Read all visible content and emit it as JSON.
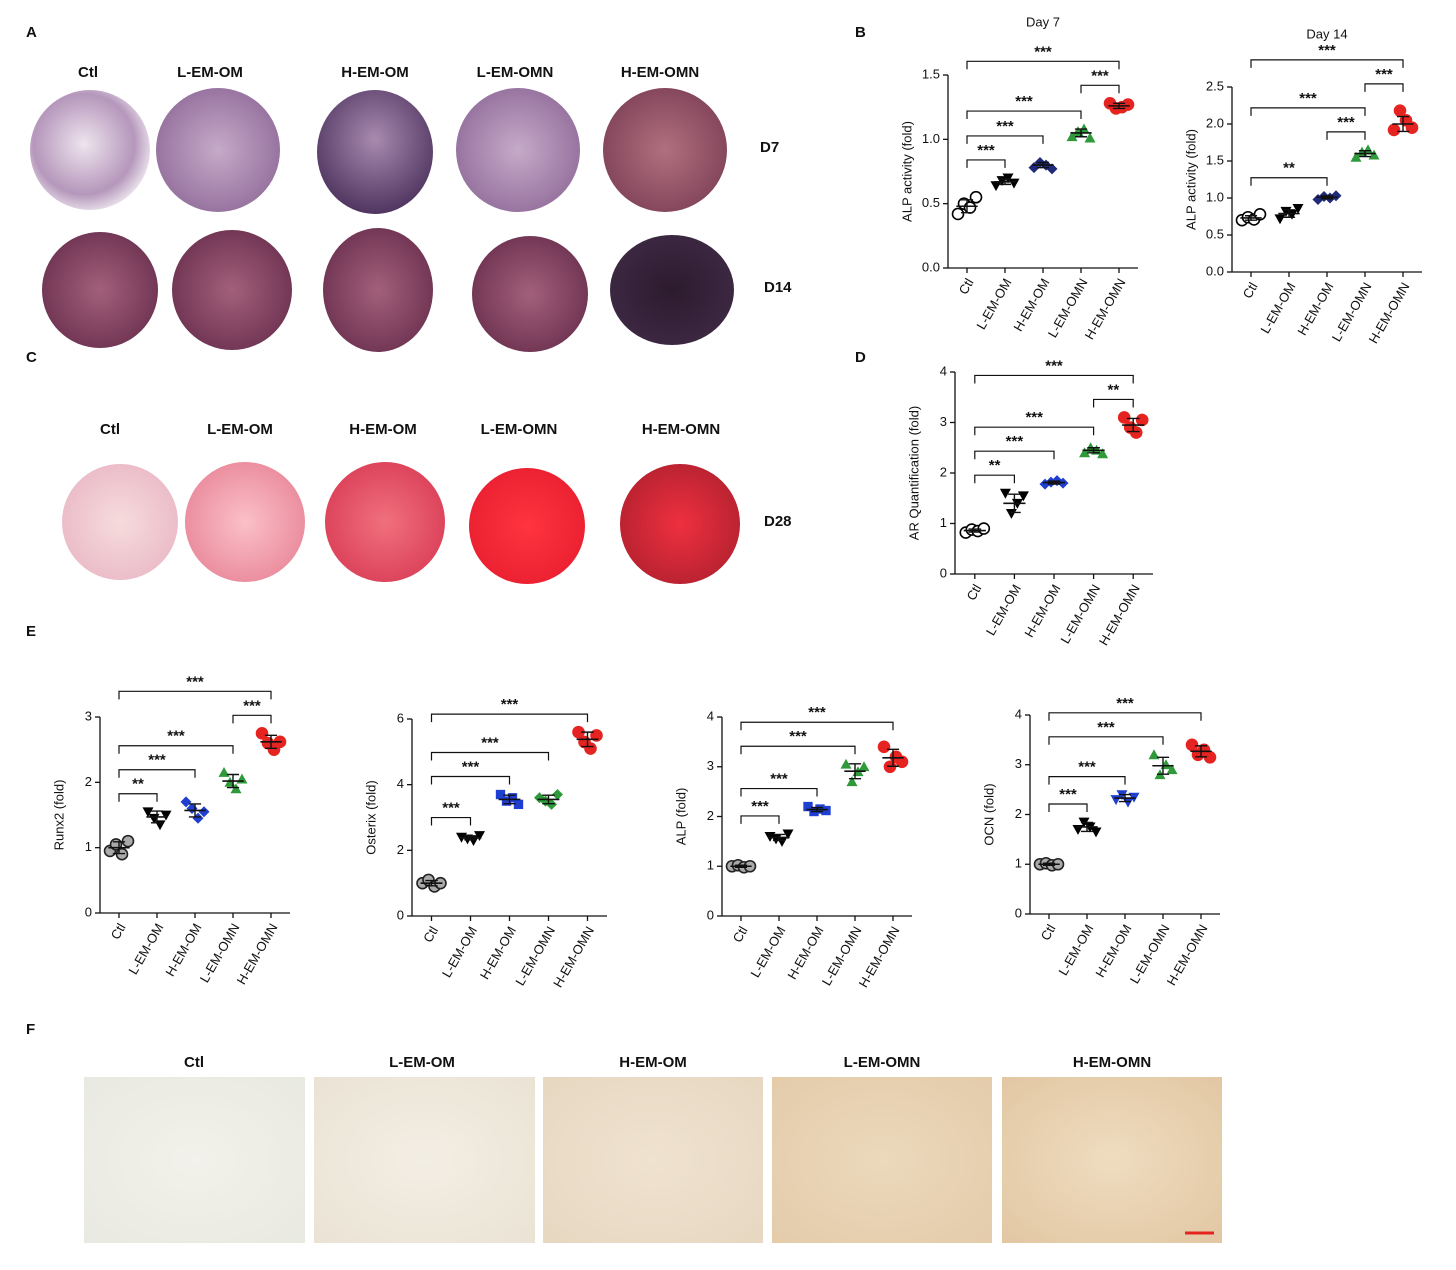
{
  "panels": [
    "A",
    "B",
    "C",
    "D",
    "E",
    "F"
  ],
  "panel_a": {
    "columns": [
      "Ctl",
      "L-EM-OM",
      "H-EM-OM",
      "L-EM-OMN",
      "H-EM-OMN"
    ],
    "rows": [
      "D7",
      "D14"
    ]
  },
  "panel_c": {
    "columns": [
      "Ctl",
      "L-EM-OM",
      "H-EM-OM",
      "L-EM-OMN",
      "H-EM-OMN"
    ],
    "rows": [
      "D28"
    ]
  },
  "panel_f": {
    "columns": [
      "Ctl",
      "L-EM-OM",
      "H-EM-OM",
      "L-EM-OMN",
      "H-EM-OMN"
    ]
  },
  "chart_data": [
    {
      "type": "dot",
      "title": "Day 7",
      "y_label": "ALP activity (fold)",
      "categories": [
        "Ctl",
        "L-EM-OM",
        "H-EM-OM",
        "L-EM-OMN",
        "H-EM-OMN"
      ],
      "colors": [
        "#000000",
        "#000000",
        "#1f2a7a",
        "#2e9a3a",
        "#e52421"
      ],
      "markers": [
        "circle-open",
        "triangle-down",
        "diamond",
        "triangle-up",
        "circle"
      ],
      "points": [
        [
          0.42,
          0.5,
          0.47,
          0.55
        ],
        [
          0.64,
          0.68,
          0.7,
          0.66
        ],
        [
          0.78,
          0.82,
          0.8,
          0.77
        ],
        [
          1.02,
          1.06,
          1.08,
          1.01
        ],
        [
          1.28,
          1.24,
          1.25,
          1.27
        ]
      ],
      "means": [
        0.48,
        0.67,
        0.8,
        1.05,
        1.26
      ],
      "errors": [
        0.05,
        0.02,
        0.02,
        0.03,
        0.02
      ],
      "ylim": [
        0,
        1.5
      ],
      "yticks": [
        {
          "value": 0,
          "label": "0.0"
        },
        {
          "value": 0.5,
          "label": "0.5"
        },
        {
          "value": 1,
          "label": "1.0"
        },
        {
          "value": 1.5,
          "label": "1.5"
        }
      ],
      "brackets": [
        {
          "between": [
            "Ctl",
            "L-EM-OM"
          ],
          "label": "***"
        },
        {
          "between": [
            "Ctl",
            "H-EM-OM"
          ],
          "label": "***"
        },
        {
          "between": [
            "Ctl",
            "L-EM-OMN"
          ],
          "label": "***"
        },
        {
          "between": [
            "L-EM-OMN",
            "H-EM-OMN"
          ],
          "label": "***"
        },
        {
          "between": [
            "Ctl",
            "H-EM-OMN"
          ],
          "label": "***"
        }
      ]
    },
    {
      "type": "dot",
      "title": "Day 14",
      "y_label": "ALP activity (fold)",
      "categories": [
        "Ctl",
        "L-EM-OM",
        "H-EM-OM",
        "L-EM-OMN",
        "H-EM-OMN"
      ],
      "colors": [
        "#000000",
        "#000000",
        "#1f2a7a",
        "#2e9a3a",
        "#e52421"
      ],
      "markers": [
        "circle-open",
        "triangle-down",
        "diamond",
        "triangle-up",
        "circle"
      ],
      "points": [
        [
          0.7,
          0.74,
          0.71,
          0.78
        ],
        [
          0.72,
          0.82,
          0.78,
          0.86
        ],
        [
          0.98,
          1.02,
          1.0,
          1.03
        ],
        [
          1.55,
          1.62,
          1.65,
          1.58
        ],
        [
          1.92,
          2.18,
          2.05,
          1.95
        ]
      ],
      "means": [
        0.73,
        0.79,
        1.01,
        1.6,
        2.0
      ],
      "errors": [
        0.03,
        0.05,
        0.02,
        0.04,
        0.1
      ],
      "ylim": [
        0,
        2.5
      ],
      "yticks": [
        {
          "value": 0,
          "label": "0.0"
        },
        {
          "value": 0.5,
          "label": "0.5"
        },
        {
          "value": 1,
          "label": "1.0"
        },
        {
          "value": 1.5,
          "label": "1.5"
        },
        {
          "value": 2,
          "label": "2.0"
        },
        {
          "value": 2.5,
          "label": "2.5"
        }
      ],
      "brackets": [
        {
          "between": [
            "Ctl",
            "H-EM-OM"
          ],
          "label": "**"
        },
        {
          "between": [
            "H-EM-OM",
            "L-EM-OMN"
          ],
          "label": "***"
        },
        {
          "between": [
            "Ctl",
            "L-EM-OMN"
          ],
          "label": "***"
        },
        {
          "between": [
            "L-EM-OMN",
            "H-EM-OMN"
          ],
          "label": "***"
        },
        {
          "between": [
            "Ctl",
            "H-EM-OMN"
          ],
          "label": "***"
        }
      ]
    },
    {
      "type": "dot",
      "y_label": "AR Quantification (fold)",
      "categories": [
        "Ctl",
        "L-EM-OM",
        "H-EM-OM",
        "L-EM-OMN",
        "H-EM-OMN"
      ],
      "colors": [
        "#000000",
        "#000000",
        "#1f3fd0",
        "#2e9a3a",
        "#e52421"
      ],
      "markers": [
        "circle-open",
        "triangle-down",
        "diamond",
        "triangle-up",
        "circle"
      ],
      "points": [
        [
          0.82,
          0.88,
          0.85,
          0.9
        ],
        [
          1.6,
          1.2,
          1.4,
          1.55
        ],
        [
          1.78,
          1.82,
          1.85,
          1.8
        ],
        [
          2.4,
          2.5,
          2.45,
          2.38
        ],
        [
          3.1,
          2.9,
          2.8,
          3.05
        ]
      ],
      "means": [
        0.86,
        1.4,
        1.81,
        2.45,
        2.95
      ],
      "errors": [
        0.03,
        0.18,
        0.03,
        0.05,
        0.13
      ],
      "ylim": [
        0,
        4
      ],
      "yticks": [
        0,
        1,
        2,
        3,
        4
      ],
      "brackets": [
        {
          "between": [
            "Ctl",
            "L-EM-OM"
          ],
          "label": "**"
        },
        {
          "between": [
            "Ctl",
            "H-EM-OM"
          ],
          "label": "***"
        },
        {
          "between": [
            "Ctl",
            "L-EM-OMN"
          ],
          "label": "***"
        },
        {
          "between": [
            "L-EM-OMN",
            "H-EM-OMN"
          ],
          "label": "**"
        },
        {
          "between": [
            "Ctl",
            "H-EM-OMN"
          ],
          "label": "***"
        }
      ]
    },
    {
      "type": "dot",
      "y_label": "Runx2 (fold)",
      "categories": [
        "Ctl",
        "L-EM-OM",
        "H-EM-OM",
        "L-EM-OMN",
        "H-EM-OMN"
      ],
      "colors": [
        "#aaaaaa",
        "#000000",
        "#1f3fd0",
        "#2e9a3a",
        "#e52421"
      ],
      "markers": [
        "circle-outlined",
        "triangle-down",
        "diamond",
        "triangle-up",
        "circle"
      ],
      "points": [
        [
          0.95,
          1.05,
          0.9,
          1.1
        ],
        [
          1.55,
          1.45,
          1.35,
          1.5
        ],
        [
          1.7,
          1.6,
          1.45,
          1.55
        ],
        [
          2.15,
          2.0,
          1.9,
          2.05
        ],
        [
          2.75,
          2.6,
          2.5,
          2.62
        ]
      ],
      "means": [
        1.0,
        1.47,
        1.57,
        2.02,
        2.62
      ],
      "errors": [
        0.09,
        0.09,
        0.1,
        0.1,
        0.1
      ],
      "ylim": [
        0,
        3
      ],
      "yticks": [
        0,
        1,
        2,
        3
      ],
      "brackets": [
        {
          "between": [
            "Ctl",
            "L-EM-OM"
          ],
          "label": "**"
        },
        {
          "between": [
            "Ctl",
            "H-EM-OM"
          ],
          "label": "***"
        },
        {
          "between": [
            "Ctl",
            "L-EM-OMN"
          ],
          "label": "***"
        },
        {
          "between": [
            "L-EM-OMN",
            "H-EM-OMN"
          ],
          "label": "***"
        },
        {
          "between": [
            "Ctl",
            "H-EM-OMN"
          ],
          "label": "***"
        }
      ]
    },
    {
      "type": "dot",
      "y_label": "Osterix (fold)",
      "categories": [
        "Ctl",
        "L-EM-OM",
        "H-EM-OM",
        "L-EM-OMN",
        "H-EM-OMN"
      ],
      "colors": [
        "#aaaaaa",
        "#000000",
        "#1f3fd0",
        "#2e9a3a",
        "#e52421"
      ],
      "markers": [
        "circle-outlined",
        "triangle-down",
        "square",
        "diamond",
        "circle"
      ],
      "points": [
        [
          1.0,
          1.1,
          0.9,
          1.0
        ],
        [
          2.4,
          2.35,
          2.3,
          2.45
        ],
        [
          3.7,
          3.5,
          3.6,
          3.4
        ],
        [
          3.6,
          3.5,
          3.4,
          3.7
        ],
        [
          5.6,
          5.3,
          5.1,
          5.5
        ]
      ],
      "means": [
        1.0,
        2.38,
        3.55,
        3.55,
        5.38
      ],
      "errors": [
        0.08,
        0.06,
        0.13,
        0.13,
        0.22
      ],
      "ylim": [
        0,
        6
      ],
      "yticks": [
        0,
        2,
        4,
        6
      ],
      "brackets": [
        {
          "between": [
            "Ctl",
            "L-EM-OM"
          ],
          "label": "***"
        },
        {
          "between": [
            "Ctl",
            "H-EM-OM"
          ],
          "label": "***"
        },
        {
          "between": [
            "Ctl",
            "L-EM-OMN"
          ],
          "label": "***"
        },
        {
          "between": [
            "Ctl",
            "H-EM-OMN"
          ],
          "label": "***"
        }
      ]
    },
    {
      "type": "dot",
      "y_label": "ALP (fold)",
      "categories": [
        "Ctl",
        "L-EM-OM",
        "H-EM-OM",
        "L-EM-OMN",
        "H-EM-OMN"
      ],
      "colors": [
        "#aaaaaa",
        "#000000",
        "#1f3fd0",
        "#2e9a3a",
        "#e52421"
      ],
      "markers": [
        "circle-outlined",
        "triangle-down",
        "square",
        "triangle-up",
        "circle"
      ],
      "points": [
        [
          1.0,
          1.02,
          0.98,
          1.0
        ],
        [
          1.6,
          1.55,
          1.5,
          1.65
        ],
        [
          2.2,
          2.1,
          2.15,
          2.12
        ],
        [
          3.05,
          2.7,
          2.9,
          3.0
        ],
        [
          3.4,
          3.0,
          3.2,
          3.1
        ]
      ],
      "means": [
        1.0,
        1.58,
        2.14,
        2.91,
        3.18
      ],
      "errors": [
        0.02,
        0.06,
        0.04,
        0.15,
        0.17
      ],
      "ylim": [
        0,
        4
      ],
      "yticks": [
        0,
        1,
        2,
        3,
        4
      ],
      "brackets": [
        {
          "between": [
            "Ctl",
            "L-EM-OM"
          ],
          "label": "***"
        },
        {
          "between": [
            "Ctl",
            "H-EM-OM"
          ],
          "label": "***"
        },
        {
          "between": [
            "Ctl",
            "L-EM-OMN"
          ],
          "label": "***"
        },
        {
          "between": [
            "Ctl",
            "H-EM-OMN"
          ],
          "label": "***"
        }
      ]
    },
    {
      "type": "dot",
      "y_label": "OCN (fold)",
      "categories": [
        "Ctl",
        "L-EM-OM",
        "H-EM-OM",
        "L-EM-OMN",
        "H-EM-OMN"
      ],
      "colors": [
        "#aaaaaa",
        "#000000",
        "#1f3fd0",
        "#2e9a3a",
        "#e52421"
      ],
      "markers": [
        "circle-outlined",
        "triangle-down",
        "triangle-down",
        "triangle-up",
        "circle"
      ],
      "points": [
        [
          1.0,
          1.02,
          0.98,
          1.0
        ],
        [
          1.7,
          1.85,
          1.75,
          1.65
        ],
        [
          2.3,
          2.4,
          2.25,
          2.35
        ],
        [
          3.2,
          2.8,
          3.0,
          2.9
        ],
        [
          3.4,
          3.2,
          3.3,
          3.15
        ]
      ],
      "means": [
        1.0,
        1.75,
        2.33,
        2.98,
        3.27
      ],
      "errors": [
        0.02,
        0.09,
        0.07,
        0.17,
        0.11
      ],
      "ylim": [
        0,
        4
      ],
      "yticks": [
        0,
        1,
        2,
        3,
        4
      ],
      "brackets": [
        {
          "between": [
            "Ctl",
            "L-EM-OM"
          ],
          "label": "***"
        },
        {
          "between": [
            "Ctl",
            "H-EM-OM"
          ],
          "label": "***"
        },
        {
          "between": [
            "Ctl",
            "L-EM-OMN"
          ],
          "label": "***"
        },
        {
          "between": [
            "Ctl",
            "H-EM-OMN"
          ],
          "label": "***"
        }
      ]
    }
  ]
}
